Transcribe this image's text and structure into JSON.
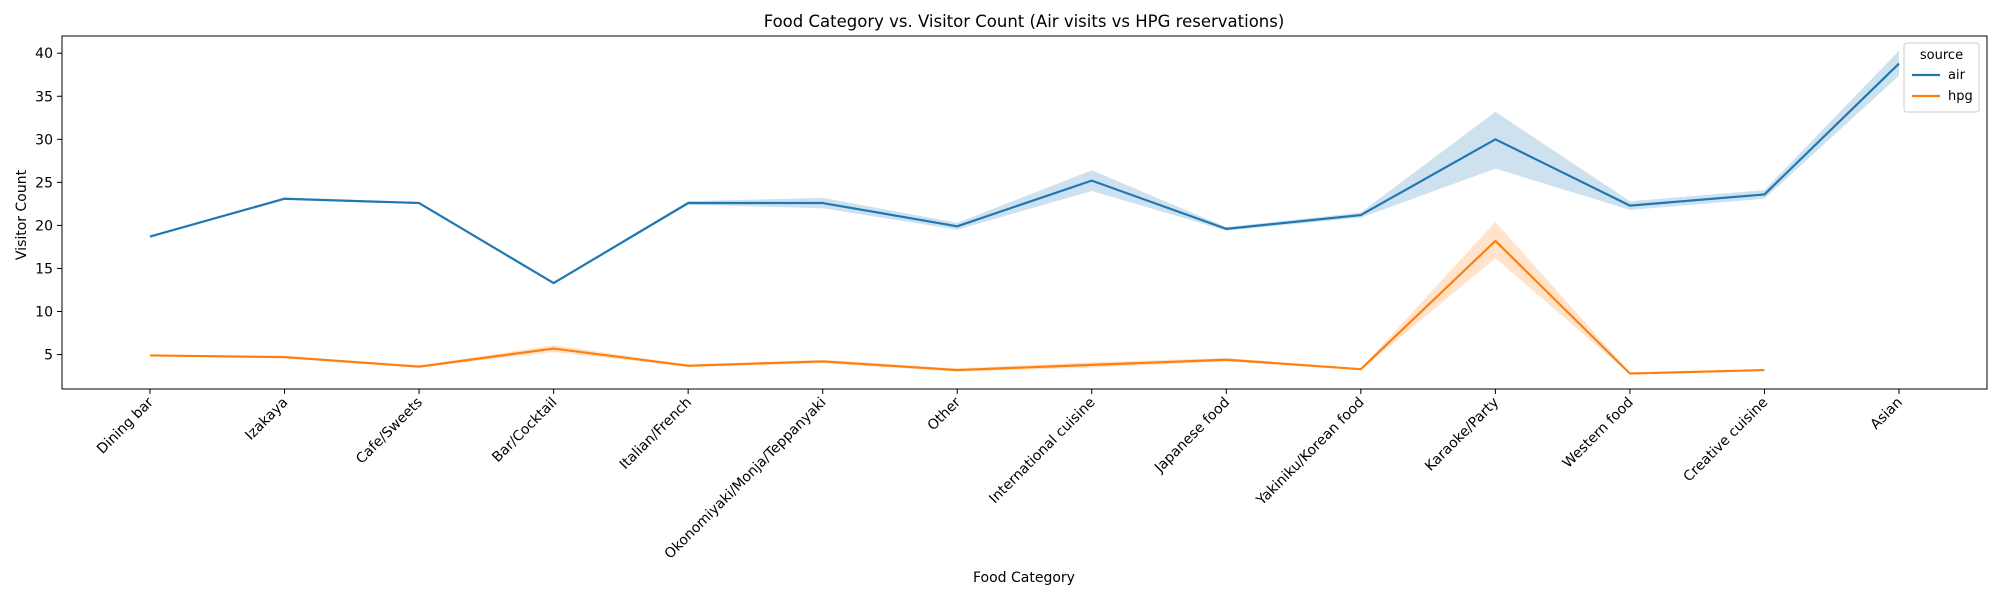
{
  "chart_data": {
    "type": "line",
    "title": "Food Category vs. Visitor Count (Air visits vs HPG reservations)",
    "xlabel": "Food Category",
    "ylabel": "Visitor Count",
    "ylim": [
      1,
      42
    ],
    "yticks": [
      5,
      10,
      15,
      20,
      25,
      30,
      35,
      40
    ],
    "grid": false,
    "categories": [
      "Dining bar",
      "Izakaya",
      "Cafe/Sweets",
      "Bar/Cocktail",
      "Italian/French",
      "Okonomiyaki/Monja/Teppanyaki",
      "Other",
      "International cuisine",
      "Japanese food",
      "Yakiniku/Korean food",
      "Karaoke/Party",
      "Western food",
      "Creative cuisine",
      "Asian"
    ],
    "legend": {
      "title": "source",
      "placement": "top-right"
    },
    "series": [
      {
        "name": "air",
        "color": "#1f77b4",
        "values": [
          18.7,
          23.1,
          22.6,
          13.3,
          22.6,
          22.6,
          19.9,
          25.2,
          19.6,
          21.2,
          30.0,
          22.3,
          23.6,
          38.8
        ],
        "lower": [
          18.6,
          23.0,
          22.5,
          13.2,
          22.4,
          22.0,
          19.5,
          24.0,
          19.4,
          20.9,
          26.6,
          21.8,
          23.1,
          37.4
        ],
        "upper": [
          18.8,
          23.2,
          22.7,
          13.4,
          22.8,
          23.2,
          20.3,
          26.4,
          19.8,
          21.5,
          33.2,
          22.8,
          24.1,
          40.3
        ]
      },
      {
        "name": "hpg",
        "color": "#ff7f0e",
        "values": [
          4.9,
          4.7,
          3.6,
          5.7,
          3.7,
          4.2,
          3.2,
          3.8,
          4.4,
          3.3,
          18.2,
          2.8,
          3.2,
          null
        ],
        "lower": [
          4.8,
          4.6,
          3.5,
          5.3,
          3.6,
          4.0,
          3.0,
          3.5,
          4.2,
          3.2,
          16.2,
          2.7,
          3.1,
          null
        ],
        "upper": [
          5.0,
          4.8,
          3.7,
          6.1,
          3.8,
          4.4,
          3.4,
          4.1,
          4.6,
          3.4,
          20.4,
          2.9,
          3.3,
          null
        ]
      }
    ]
  }
}
